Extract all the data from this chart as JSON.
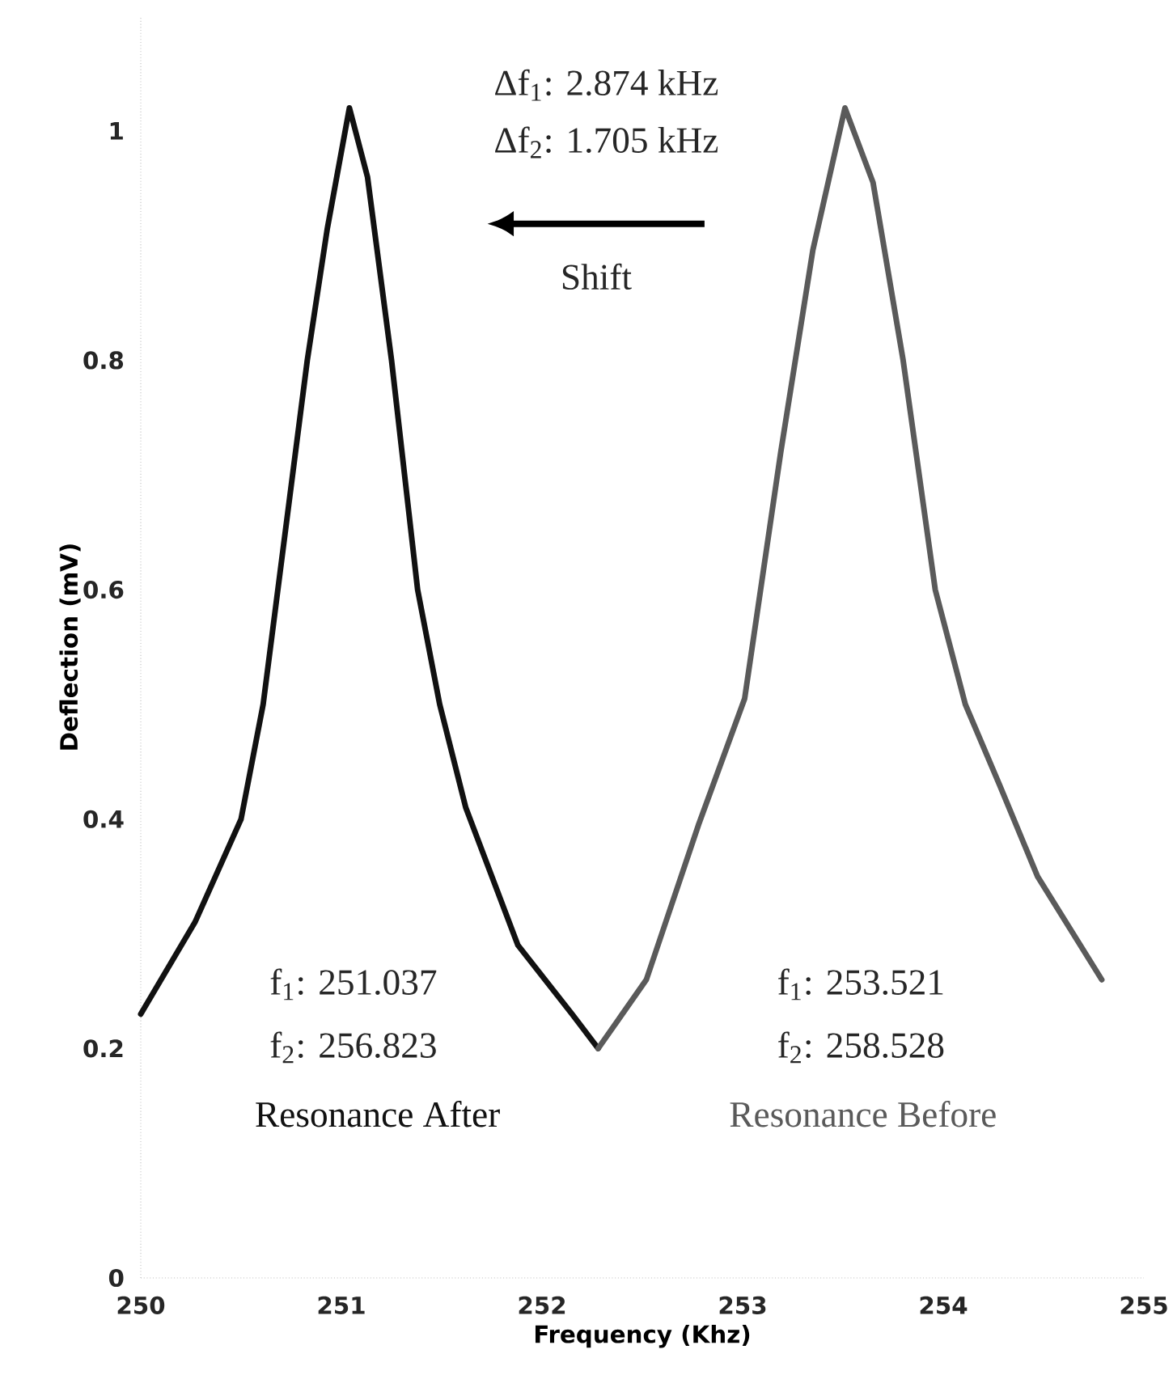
{
  "chart_data": {
    "type": "line",
    "xlabel": "Frequency (Khz)",
    "ylabel": "Deflection (mV)",
    "xlim": [
      250,
      255
    ],
    "ylim": [
      0,
      1.1
    ],
    "xticks": [
      250,
      251,
      252,
      253,
      254,
      255
    ],
    "yticks": [
      0,
      0.2,
      0.4,
      0.6,
      0.8,
      1
    ],
    "series": [
      {
        "name": "Resonance After",
        "color": "#111111",
        "x": [
          250.0,
          250.27,
          250.5,
          250.61,
          250.83,
          250.93,
          251.04,
          251.13,
          251.25,
          251.38,
          251.49,
          251.62,
          251.88,
          252.15,
          252.28
        ],
        "values": [
          0.23,
          0.31,
          0.4,
          0.5,
          0.8,
          0.915,
          1.02,
          0.96,
          0.8,
          0.6,
          0.5,
          0.41,
          0.29,
          0.23,
          0.2
        ]
      },
      {
        "name": "Resonance Before",
        "color": "#5a5a5a",
        "x": [
          252.28,
          252.52,
          252.78,
          253.01,
          253.19,
          253.35,
          253.51,
          253.65,
          253.8,
          253.96,
          254.11,
          254.28,
          254.47,
          254.79
        ],
        "values": [
          0.2,
          0.26,
          0.395,
          0.505,
          0.72,
          0.896,
          1.02,
          0.955,
          0.8,
          0.6,
          0.5,
          0.43,
          0.35,
          0.26
        ]
      }
    ],
    "annotations": [
      "Δf$_{1}$: 2.874 kHz",
      "Δf$_{2}$: 1.705 kHz",
      "Shift",
      "f$_{1}$: 251.037",
      "f$_{2}$: 256.823",
      "f$_{1}$: 253.521",
      "f$_{2}$: 258.528"
    ],
    "marker": "none",
    "line_style": "solid",
    "grid": false,
    "legend": false
  }
}
